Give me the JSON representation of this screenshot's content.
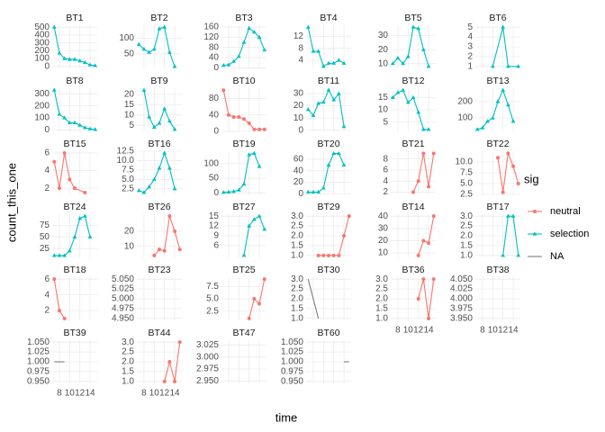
{
  "chart_data": {
    "type": "line",
    "x_label": "time",
    "y_label": "count_this_one",
    "legend_title": "sig",
    "series": [
      {
        "name": "neutral",
        "color": "#F8766D",
        "shape": "circle"
      },
      {
        "name": "selection",
        "color": "#00BFC4",
        "shape": "triangle"
      },
      {
        "name": "NA",
        "color": "#7F7F7F",
        "shape": "none"
      }
    ],
    "xlim": [
      6.6,
      15.4
    ],
    "xticks": [
      8,
      10,
      12,
      14
    ],
    "grid": true,
    "panels": [
      {
        "title": "BT1",
        "sig": "selection",
        "x": [
          7,
          8,
          9,
          10,
          11,
          12,
          13,
          14,
          15
        ],
        "values": [
          500,
          170,
          100,
          90,
          90,
          70,
          50,
          20,
          10
        ],
        "ylim": [
          -25,
          525
        ],
        "yticks": [
          0,
          100,
          200,
          300,
          400,
          500
        ]
      },
      {
        "title": "BT2",
        "sig": "selection",
        "x": [
          7,
          8,
          9,
          10,
          11,
          12,
          13,
          14
        ],
        "values": [
          80,
          65,
          55,
          65,
          130,
          135,
          55,
          10
        ],
        "ylim": [
          4,
          141
        ],
        "yticks": [
          50,
          100
        ]
      },
      {
        "title": "BT3",
        "sig": "selection",
        "x": [
          7,
          8,
          9,
          10,
          11,
          12,
          13,
          14,
          15
        ],
        "values": [
          10,
          12,
          25,
          45,
          100,
          155,
          140,
          120,
          70
        ],
        "ylim": [
          -2,
          167
        ],
        "yticks": [
          0,
          40,
          80,
          120,
          160
        ]
      },
      {
        "title": "BT4",
        "sig": "selection",
        "x": [
          7,
          8,
          9,
          10,
          11,
          12,
          13,
          14
        ],
        "values": [
          15,
          7,
          7,
          2,
          3,
          3,
          4,
          3
        ],
        "ylim": [
          1.3,
          15.7
        ],
        "yticks": [
          4,
          8,
          12
        ]
      },
      {
        "title": "BT5",
        "sig": "selection",
        "x": [
          7,
          8,
          9,
          10,
          11,
          12,
          13,
          14
        ],
        "values": [
          10,
          14,
          10,
          15,
          36,
          35,
          20,
          8
        ],
        "ylim": [
          6.6,
          37.4
        ],
        "yticks": [
          10,
          20,
          30
        ]
      },
      {
        "title": "BT6",
        "sig": "selection",
        "x": [
          10,
          12,
          13,
          15
        ],
        "values": [
          1,
          5,
          1,
          1
        ],
        "ylim": [
          0.8,
          5.2
        ],
        "yticks": [
          1,
          2,
          3,
          4,
          5
        ]
      },
      {
        "title": "BT8",
        "sig": "selection",
        "x": [
          7,
          8,
          9,
          10,
          11,
          12,
          13,
          14,
          15
        ],
        "values": [
          330,
          130,
          100,
          60,
          60,
          40,
          20,
          10,
          5
        ],
        "ylim": [
          -11,
          346
        ],
        "yticks": [
          0,
          100,
          200,
          300
        ]
      },
      {
        "title": "BT9",
        "sig": "selection",
        "x": [
          8,
          9,
          10,
          11,
          12,
          13,
          14
        ],
        "values": [
          22,
          9,
          4,
          6,
          13,
          7,
          3
        ],
        "ylim": [
          2,
          23
        ],
        "yticks": [
          5,
          10,
          15,
          20
        ]
      },
      {
        "title": "BT10",
        "sig": "neutral",
        "x": [
          7,
          8,
          9,
          10,
          11,
          12,
          13,
          14,
          15
        ],
        "values": [
          100,
          40,
          35,
          35,
          30,
          20,
          5,
          5,
          5
        ],
        "ylim": [
          0,
          105
        ],
        "yticks": [
          0,
          40,
          80
        ]
      },
      {
        "title": "BT11",
        "sig": "selection",
        "x": [
          7,
          8,
          9,
          10,
          11,
          12,
          13,
          14
        ],
        "values": [
          17,
          12,
          22,
          23,
          33,
          25,
          30,
          3
        ],
        "ylim": [
          -1,
          34.5
        ],
        "yticks": [
          0,
          10,
          20,
          30
        ]
      },
      {
        "title": "BT12",
        "sig": "selection",
        "x": [
          7,
          8,
          9,
          10,
          11,
          12,
          13,
          14
        ],
        "values": [
          15,
          17,
          18,
          13,
          15,
          9,
          2,
          2
        ],
        "ylim": [
          1.2,
          18.8
        ],
        "yticks": [
          5,
          10,
          15
        ]
      },
      {
        "title": "BT13",
        "sig": "selection",
        "x": [
          7,
          8,
          9,
          10,
          11,
          12,
          13,
          14
        ],
        "values": [
          30,
          40,
          80,
          100,
          200,
          270,
          180,
          80
        ],
        "ylim": [
          18,
          282
        ],
        "yticks": [
          100,
          200
        ]
      },
      {
        "title": "BT15",
        "sig": "neutral",
        "x": [
          7,
          8,
          9,
          10,
          11,
          13
        ],
        "values": [
          5,
          2,
          6,
          3,
          2,
          1.5
        ],
        "ylim": [
          1.3,
          6.2
        ],
        "yticks": [
          2,
          4,
          6
        ]
      },
      {
        "title": "BT16",
        "sig": "selection",
        "x": [
          7,
          8,
          9,
          10,
          11,
          12,
          13,
          14
        ],
        "values": [
          2,
          1.5,
          3,
          5,
          8,
          12,
          8,
          2.5
        ],
        "ylim": [
          1,
          12.5
        ],
        "yticks": [
          2.5,
          {
            "value": 5,
            "label": "5.0"
          },
          7.5,
          {
            "value": 10,
            "label": "10.0"
          },
          12.5
        ]
      },
      {
        "title": "BT19",
        "sig": "selection",
        "x": [
          7,
          8,
          9,
          10,
          11,
          12,
          13,
          14
        ],
        "values": [
          2,
          3,
          5,
          10,
          30,
          130,
          135,
          90
        ],
        "ylim": [
          -5,
          142
        ],
        "yticks": [
          0,
          50,
          100
        ]
      },
      {
        "title": "BT20",
        "sig": "selection",
        "x": [
          7,
          8,
          9,
          10,
          11,
          12,
          13,
          14
        ],
        "values": [
          3,
          3,
          3,
          10,
          50,
          70,
          70,
          50
        ],
        "ylim": [
          -1,
          74
        ],
        "yticks": [
          0,
          20,
          40,
          60
        ]
      },
      {
        "title": "BT21",
        "sig": "neutral",
        "x": [
          11,
          12,
          13,
          14,
          15
        ],
        "values": [
          2,
          4,
          9,
          3,
          9
        ],
        "ylim": [
          1.6,
          9.4
        ],
        "yticks": [
          2,
          4,
          6,
          8
        ]
      },
      {
        "title": "BT22",
        "sig": "neutral",
        "x": [
          11,
          12,
          13,
          14,
          15
        ],
        "values": [
          11,
          3,
          12,
          9,
          5
        ],
        "ylim": [
          2.5,
          12.5
        ],
        "yticks": [
          2.5,
          {
            "value": 5,
            "label": "5.0"
          },
          7.5,
          {
            "value": 10,
            "label": "10.0"
          }
        ]
      },
      {
        "title": "BT24",
        "sig": "selection",
        "x": [
          7,
          8,
          9,
          10,
          11,
          12,
          13,
          14
        ],
        "values": [
          10,
          10,
          10,
          20,
          50,
          90,
          95,
          50
        ],
        "ylim": [
          6,
          99
        ],
        "yticks": [
          25,
          50,
          75
        ]
      },
      {
        "title": "BT26",
        "sig": "neutral",
        "x": [
          10,
          11,
          12,
          13,
          14,
          15
        ],
        "values": [
          4,
          8,
          7,
          30,
          20,
          8
        ],
        "ylim": [
          2.7,
          31.3
        ],
        "yticks": [
          10,
          20
        ]
      },
      {
        "title": "BT27",
        "sig": "selection",
        "x": [
          11,
          12,
          13,
          14,
          15
        ],
        "values": [
          3,
          12,
          14,
          15,
          11
        ],
        "ylim": [
          2.4,
          15.6
        ],
        "yticks": [
          6,
          9,
          12,
          15
        ]
      },
      {
        "title": "BT29",
        "sig": "neutral",
        "x": [
          9,
          10,
          11,
          12,
          13,
          14,
          15
        ],
        "values": [
          1,
          1,
          1,
          1,
          1,
          2,
          3
        ],
        "ylim": [
          0.9,
          3.1
        ],
        "yticks": [
          {
            "value": 1,
            "label": "1.0"
          },
          1.5,
          {
            "value": 2,
            "label": "2.0"
          },
          2.5,
          {
            "value": 3,
            "label": "3.0"
          }
        ]
      },
      {
        "title": "BT14",
        "sig": "neutral",
        "x": [
          12,
          13,
          14,
          15
        ],
        "values": [
          8,
          20,
          18,
          40
        ],
        "ylim": [
          6.4,
          41.6
        ],
        "yticks": [
          10,
          20,
          30,
          40
        ]
      },
      {
        "title": "BT17",
        "sig": "selection",
        "x": [
          12,
          13,
          14,
          15
        ],
        "values": [
          1,
          3,
          3,
          1
        ],
        "ylim": [
          0.9,
          3.1
        ],
        "yticks": [
          {
            "value": 1,
            "label": "1.0"
          },
          1.5,
          {
            "value": 2,
            "label": "2.0"
          },
          2.5,
          {
            "value": 3,
            "label": "3.0"
          }
        ]
      },
      {
        "title": "BT18",
        "sig": "neutral",
        "x": [
          7,
          8,
          9
        ],
        "values": [
          6,
          2,
          1
        ],
        "ylim": [
          0.75,
          6.25
        ],
        "yticks": [
          2,
          4,
          6
        ]
      },
      {
        "title": "BT23",
        "sig": "NA",
        "x": [],
        "values": [],
        "ylim": [
          4.945,
          5.055
        ],
        "yticks": [
          {
            "value": 4.95,
            "label": "4.950"
          },
          4.975,
          {
            "value": 5,
            "label": "5.000"
          },
          5.025,
          {
            "value": 5.05,
            "label": "5.050"
          }
        ]
      },
      {
        "title": "BT25",
        "sig": "neutral",
        "x": [
          12,
          13,
          14,
          15
        ],
        "values": [
          1,
          5,
          4,
          9
        ],
        "ylim": [
          0.6,
          9.4
        ],
        "yticks": [
          2.5,
          {
            "value": 5,
            "label": "5.0"
          },
          7.5
        ]
      },
      {
        "title": "BT30",
        "sig": "NA",
        "x": [
          7,
          9
        ],
        "values": [
          3,
          1
        ],
        "ylim": [
          0.9,
          3.1
        ],
        "yticks": [
          {
            "value": 1,
            "label": "1.0"
          },
          1.5,
          {
            "value": 2,
            "label": "2.0"
          },
          2.5,
          {
            "value": 3,
            "label": "3.0"
          }
        ]
      },
      {
        "title": "BT36",
        "sig": "neutral",
        "x": [
          12,
          13,
          14,
          15
        ],
        "values": [
          2,
          3,
          1,
          3
        ],
        "ylim": [
          0.9,
          3.1
        ],
        "yticks": [
          {
            "value": 1,
            "label": "1.0"
          },
          1.5,
          {
            "value": 2,
            "label": "2.0"
          },
          2.5,
          {
            "value": 3,
            "label": "3.0"
          }
        ],
        "x_axis": true
      },
      {
        "title": "BT38",
        "sig": "NA",
        "x": [],
        "values": [],
        "ylim": [
          3.945,
          4.055
        ],
        "yticks": [
          {
            "value": 3.95,
            "label": "3.950"
          },
          3.975,
          {
            "value": 4,
            "label": "4.000"
          },
          4.025,
          {
            "value": 4.05,
            "label": "4.050"
          }
        ],
        "x_axis": true
      },
      {
        "title": "BT39",
        "sig": "NA",
        "x": [
          7,
          9
        ],
        "values": [
          1,
          1
        ],
        "ylim": [
          0.945,
          1.055
        ],
        "yticks": [
          {
            "value": 0.95,
            "label": "0.950"
          },
          0.975,
          {
            "value": 1,
            "label": "1.000"
          },
          1.025,
          {
            "value": 1.05,
            "label": "1.050"
          }
        ],
        "x_axis": true
      },
      {
        "title": "BT44",
        "sig": "neutral",
        "x": [
          12,
          13,
          14,
          15
        ],
        "values": [
          1,
          2,
          1,
          3
        ],
        "ylim": [
          0.9,
          3.1
        ],
        "yticks": [
          {
            "value": 1,
            "label": "1.0"
          },
          1.5,
          {
            "value": 2,
            "label": "2.0"
          },
          2.5,
          {
            "value": 3,
            "label": "3.0"
          }
        ],
        "x_axis": true
      },
      {
        "title": "BT47",
        "sig": "NA",
        "x": [],
        "values": [],
        "ylim": [
          2.945,
          3.035
        ],
        "yticks": [
          {
            "value": 2.95,
            "label": "2.950"
          },
          2.975,
          {
            "value": 3,
            "label": "3.000"
          },
          3.025
        ]
      },
      {
        "title": "BT60",
        "sig": "NA",
        "x": [
          14,
          15
        ],
        "values": [
          1,
          1
        ],
        "ylim": [
          0.945,
          1.055
        ],
        "yticks": [
          {
            "value": 0.95,
            "label": "0.950"
          },
          0.975,
          {
            "value": 1,
            "label": "1.000"
          },
          1.025,
          {
            "value": 1.05,
            "label": "1.050"
          }
        ]
      }
    ]
  }
}
